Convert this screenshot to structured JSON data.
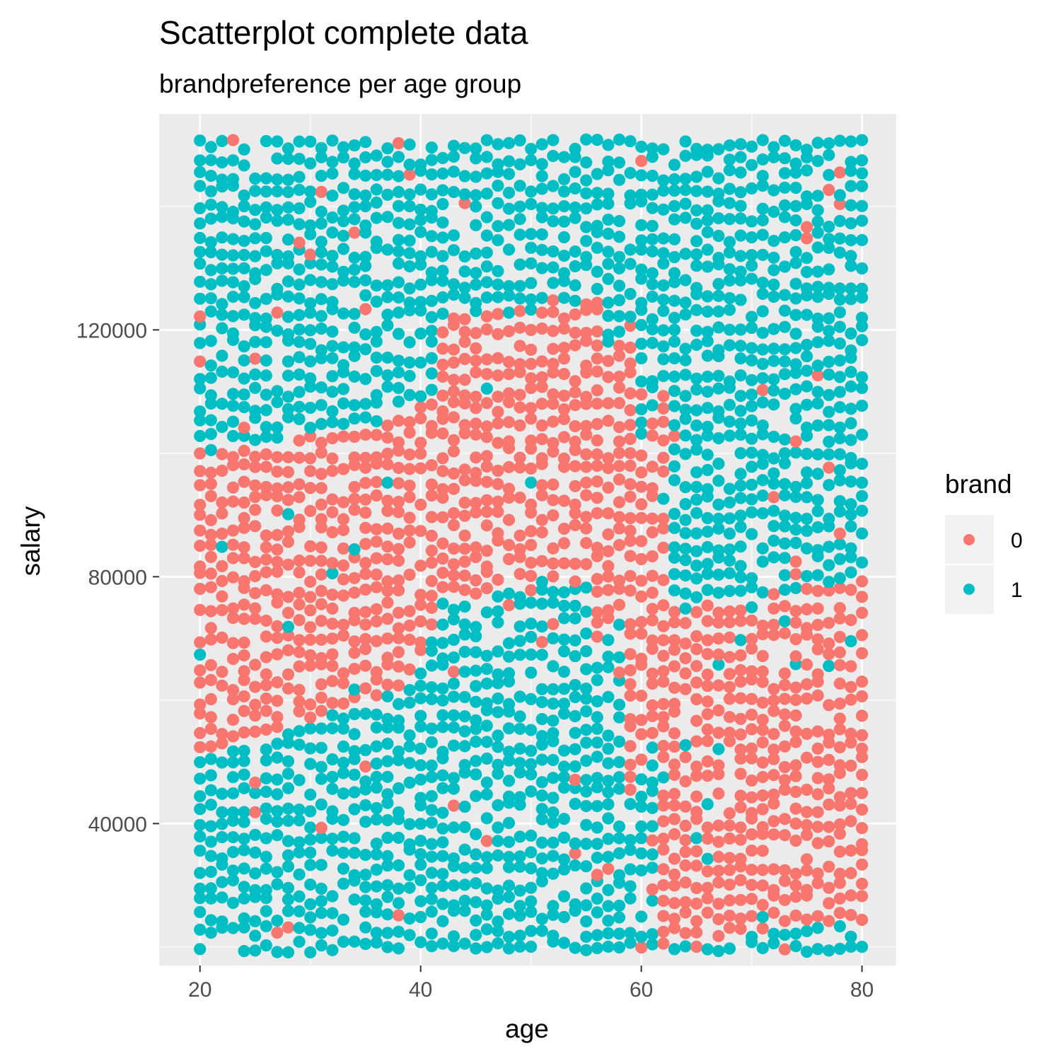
{
  "chart_data": {
    "type": "scatter",
    "title": "Scatterplot complete data",
    "subtitle": "brandpreference per age group",
    "xlabel": "age",
    "ylabel": "salary",
    "xlim": [
      16.3,
      83.1
    ],
    "ylim": [
      17000,
      155000
    ],
    "x_ticks": [
      20,
      40,
      60,
      80
    ],
    "x_tick_labels": [
      "20",
      "40",
      "60",
      "80"
    ],
    "y_ticks": [
      40000,
      80000,
      120000
    ],
    "y_tick_labels": [
      "40000",
      "80000",
      "120000"
    ],
    "grid": true,
    "legend": {
      "title": "brand",
      "position": "right",
      "entries": [
        {
          "label": "0",
          "color": "#F8766D"
        },
        {
          "label": "1",
          "color": "#00BFC4"
        }
      ]
    },
    "colors": {
      "brand_0": "#F8766D",
      "brand_1": "#00BFC4",
      "panel": "#EBEBEB",
      "grid": "#FFFFFF"
    },
    "sampling": {
      "x_range": [
        20,
        80
      ],
      "x_step": 1,
      "y_range": [
        20000,
        150000
      ],
      "y_step": 2500
    },
    "regions_brand_0": [
      {
        "x": [
          20,
          39
        ],
        "y_lower": [
          50000,
          62000
        ],
        "y_upper": [
          100000,
          106000
        ]
      },
      {
        "x": [
          39,
          42
        ],
        "y_lower": [
          62000,
          76000
        ],
        "y_upper": [
          106000,
          112000
        ]
      },
      {
        "x": [
          42,
          56
        ],
        "y_lower": [
          76000,
          79000
        ],
        "y_upper": [
          122000,
          126000
        ]
      },
      {
        "x": [
          56,
          59
        ],
        "y_lower": [
          66000,
          79000
        ],
        "y_upper": [
          112000,
          122000
        ]
      },
      {
        "x": [
          59,
          62
        ],
        "y_lower": [
          44000,
          58000
        ],
        "y_upper": [
          96000,
          110000
        ]
      },
      {
        "x": [
          62,
          80
        ],
        "y_lower": [
          20000,
          24000
        ],
        "y_upper": [
          74000,
          80000
        ]
      }
    ]
  }
}
